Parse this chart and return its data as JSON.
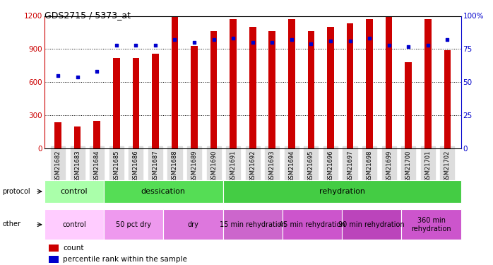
{
  "title": "GDS2715 / 5373_at",
  "samples": [
    "GSM21682",
    "GSM21683",
    "GSM21684",
    "GSM21685",
    "GSM21686",
    "GSM21687",
    "GSM21688",
    "GSM21689",
    "GSM21690",
    "GSM21691",
    "GSM21692",
    "GSM21693",
    "GSM21694",
    "GSM21695",
    "GSM21696",
    "GSM21697",
    "GSM21698",
    "GSM21699",
    "GSM21700",
    "GSM21701",
    "GSM21702"
  ],
  "counts": [
    240,
    200,
    250,
    820,
    820,
    860,
    1190,
    930,
    1060,
    1170,
    1100,
    1060,
    1170,
    1060,
    1100,
    1130,
    1170,
    1190,
    780,
    1170,
    890
  ],
  "percentile": [
    55,
    54,
    58,
    78,
    78,
    78,
    82,
    80,
    82,
    83,
    80,
    80,
    82,
    79,
    81,
    81,
    83,
    78,
    77,
    78,
    82
  ],
  "bar_color": "#cc0000",
  "dot_color": "#0000cc",
  "ylim_left": [
    0,
    1200
  ],
  "ylim_right": [
    0,
    100
  ],
  "yticks_left": [
    0,
    300,
    600,
    900,
    1200
  ],
  "yticks_right": [
    0,
    25,
    50,
    75,
    100
  ],
  "ytick_labels_right": [
    "0",
    "25",
    "50",
    "75",
    "100%"
  ],
  "protocol_segments": [
    {
      "text": "control",
      "start": 0,
      "end": 3,
      "color": "#aaffaa"
    },
    {
      "text": "dessication",
      "start": 3,
      "end": 9,
      "color": "#55dd55"
    },
    {
      "text": "rehydration",
      "start": 9,
      "end": 21,
      "color": "#44cc44"
    }
  ],
  "other_segments": [
    {
      "text": "control",
      "start": 0,
      "end": 3,
      "color": "#ffccff"
    },
    {
      "text": "50 pct dry",
      "start": 3,
      "end": 6,
      "color": "#ee99ee"
    },
    {
      "text": "dry",
      "start": 6,
      "end": 9,
      "color": "#dd77dd"
    },
    {
      "text": "15 min rehydration",
      "start": 9,
      "end": 12,
      "color": "#cc66cc"
    },
    {
      "text": "45 min rehydration",
      "start": 12,
      "end": 15,
      "color": "#cc55cc"
    },
    {
      "text": "90 min rehydration",
      "start": 15,
      "end": 18,
      "color": "#bb44bb"
    },
    {
      "text": "360 min\nrehydration",
      "start": 18,
      "end": 21,
      "color": "#cc55cc"
    }
  ],
  "legend_items": [
    {
      "label": "count",
      "color": "#cc0000"
    },
    {
      "label": "percentile rank within the sample",
      "color": "#0000cc"
    }
  ],
  "bg_color": "#ffffff",
  "tick_label_color_left": "#cc0000",
  "tick_label_color_right": "#0000cc",
  "xticklabel_bg": "#dddddd"
}
